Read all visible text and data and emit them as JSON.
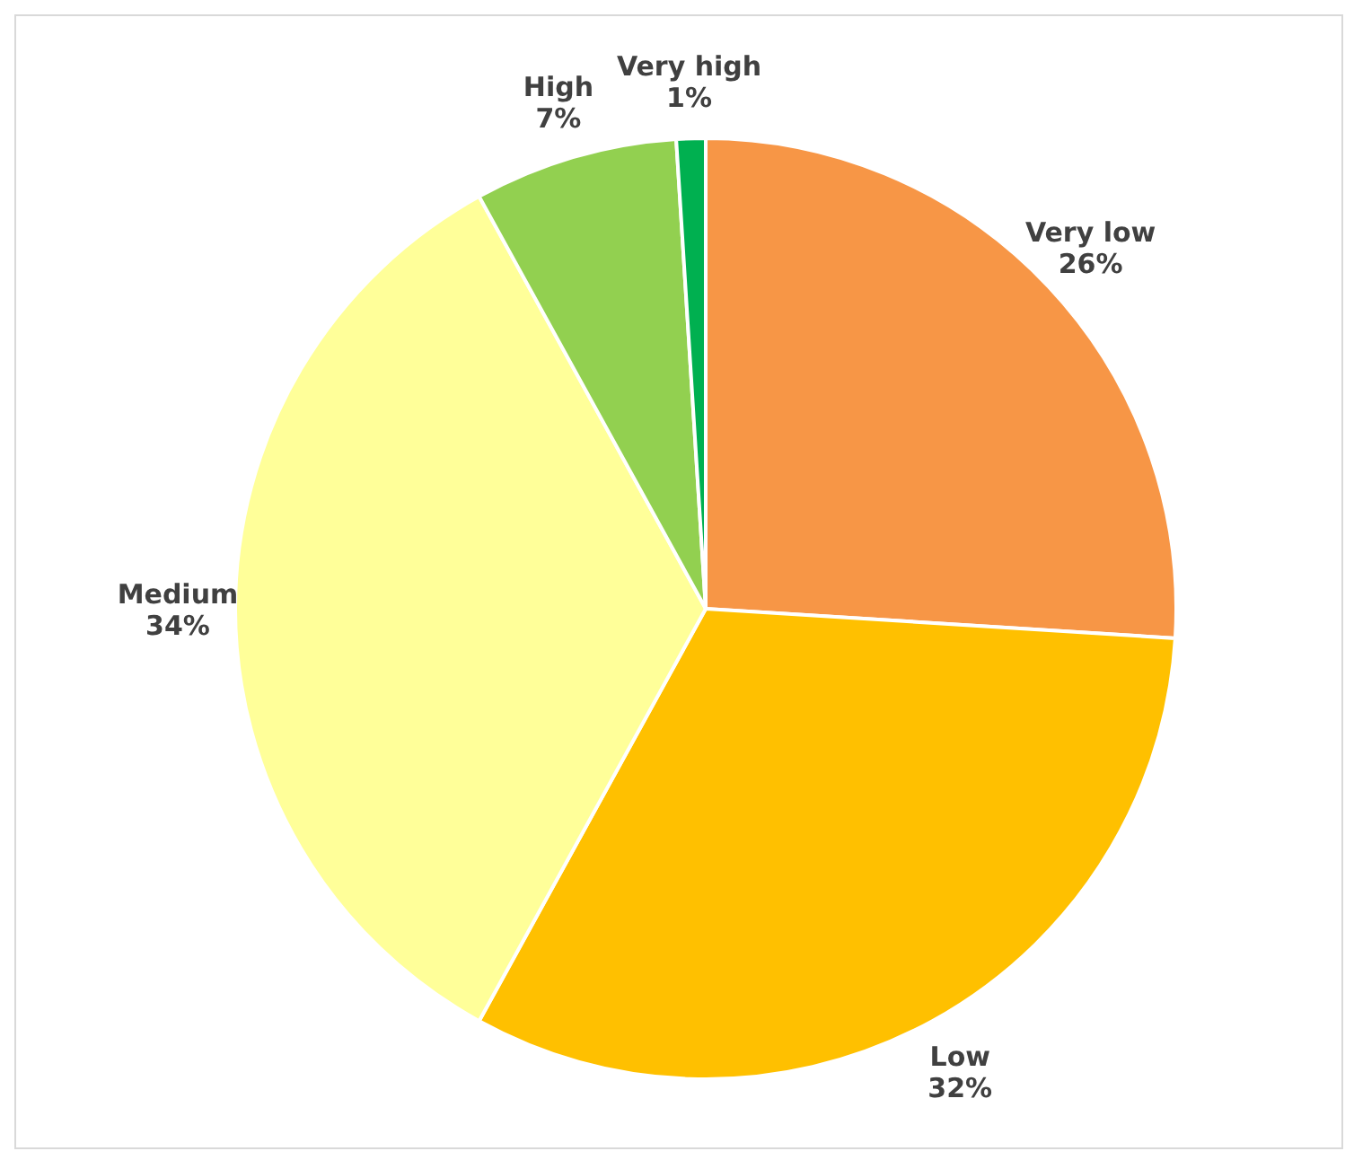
{
  "chart_data": {
    "type": "pie",
    "categories": [
      "Very low",
      "Low",
      "Medium",
      "High",
      "Very high"
    ],
    "values": [
      26,
      32,
      34,
      7,
      1
    ],
    "value_labels": [
      "26%",
      "32%",
      "34%",
      "7%",
      "1%"
    ],
    "colors": [
      "#f79646",
      "#ffc000",
      "#ffff99",
      "#92d050",
      "#00b050"
    ],
    "legend": false
  }
}
